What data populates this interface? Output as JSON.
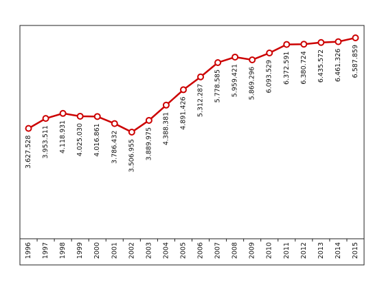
{
  "chart_data": {
    "type": "line",
    "categories": [
      "1996",
      "1997",
      "1998",
      "1999",
      "2000",
      "2001",
      "2002",
      "2003",
      "2004",
      "2005",
      "2006",
      "2007",
      "2008",
      "2009",
      "2010",
      "2011",
      "2012",
      "2013",
      "2014",
      "2015"
    ],
    "values": [
      3627528,
      3953511,
      4118931,
      4025030,
      4016861,
      3786432,
      3506955,
      3889975,
      4388381,
      4891426,
      5312287,
      5778585,
      5959421,
      5869296,
      6093529,
      6372591,
      6380724,
      6435572,
      6461326,
      6587859
    ],
    "value_labels": [
      "3.627.528",
      "3.953.511",
      "4.118.931",
      "4.025.030",
      "4.016.861",
      "3.786.432",
      "3.506.955",
      "3.889.975",
      "4.388.381",
      "4.891.426",
      "5.312.287",
      "5.778.585",
      "5.959.421",
      "5.869.296",
      "6.093.529",
      "6.372.591",
      "6.380.724",
      "6.435.572",
      "6.461.326",
      "6.587.859"
    ],
    "color": "#cc0000"
  }
}
